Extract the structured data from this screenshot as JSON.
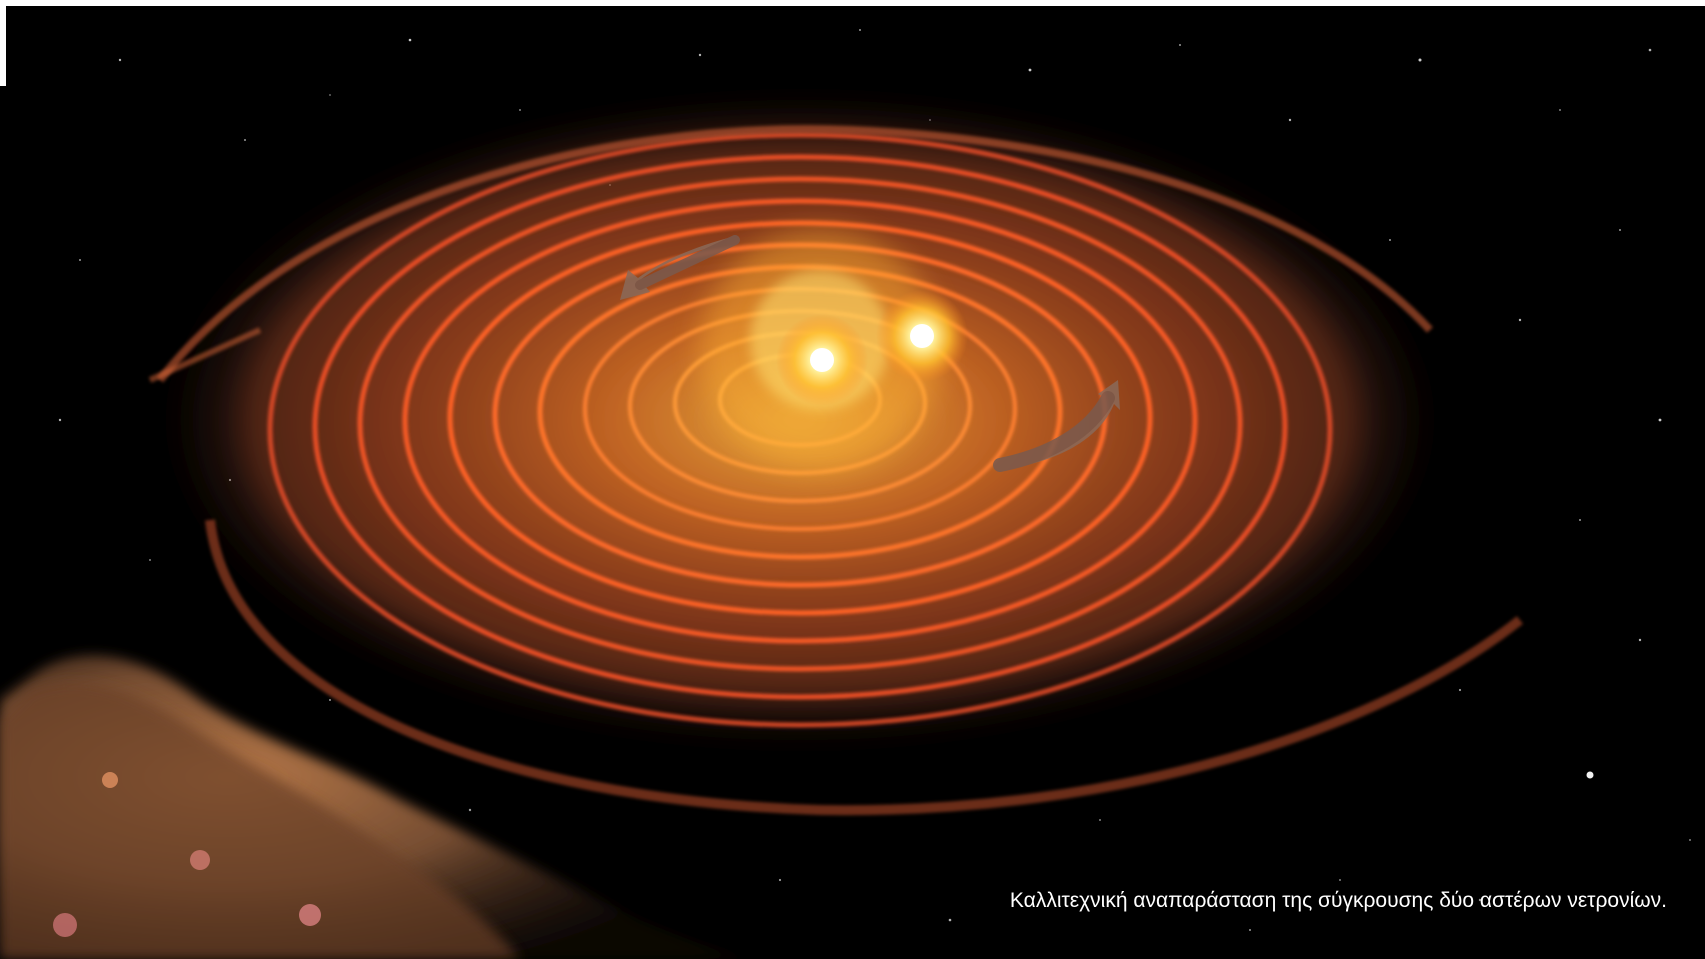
{
  "caption": "Καλλιτεχνική αναπαράσταση της σύγκρουσης δύο αστέρων νετρονίων.",
  "colors": {
    "background": "#000000",
    "spiral_arm": "#ff6a2a",
    "core_glow": "#ffe27a",
    "star_core": "#ffffff",
    "nebula": "#b06a3a",
    "rotation_arrow": "#8a6a5a"
  },
  "scene": {
    "description_icons": [
      "neutron-star-icon",
      "spiral-disc-icon",
      "rotation-arrow-icon",
      "nebula-cloud-icon",
      "starfield-icon"
    ]
  }
}
